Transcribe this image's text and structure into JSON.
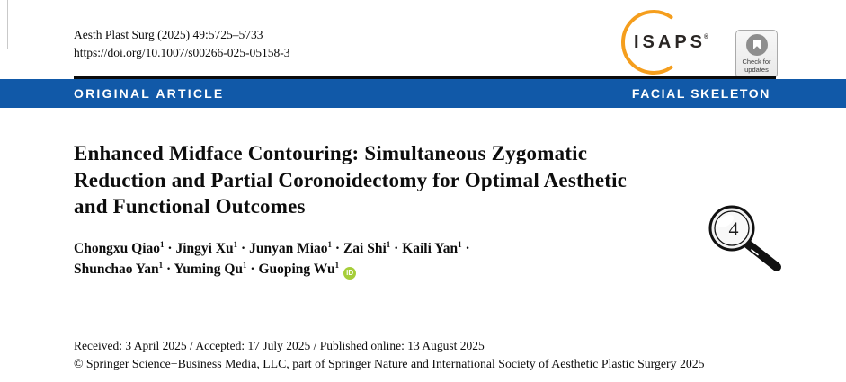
{
  "header": {
    "journal_ref": "Aesth Plast Surg (2025) 49:5725–5733",
    "doi": "https://doi.org/10.1007/s00266-025-05158-3"
  },
  "logo": {
    "text": "ISAPS",
    "registered": "®"
  },
  "update_badge": {
    "line1": "Check for",
    "line2": "updates"
  },
  "banner": {
    "left": "ORIGINAL ARTICLE",
    "right": "FACIAL SKELETON"
  },
  "article": {
    "title_lines": [
      "Enhanced Midface Contouring: Simultaneous Zygomatic",
      "Reduction and Partial Coronoidectomy for Optimal Aesthetic",
      "and Functional Outcomes"
    ],
    "dates_line": "Received: 3 April 2025 / Accepted: 17 July 2025 / Published online: 13 August 2025",
    "copyright": "© Springer Science+Business Media, LLC, part of Springer Nature and International Society of Aesthetic Plastic Surgery 2025"
  },
  "authors": {
    "separator": "·",
    "orcid_label": "iD",
    "lines": [
      [
        {
          "name": "Chongxu Qiao",
          "sup": "1"
        },
        {
          "name": "Jingyi Xu",
          "sup": "1"
        },
        {
          "name": "Junyan Miao",
          "sup": "1"
        },
        {
          "name": "Zai Shi",
          "sup": "1"
        },
        {
          "name": "Kaili Yan",
          "sup": "1"
        }
      ],
      [
        {
          "name": "Shunchao Yan",
          "sup": "1"
        },
        {
          "name": "Yuming Qu",
          "sup": "1"
        },
        {
          "name": "Guoping Wu",
          "sup": "1"
        }
      ]
    ]
  },
  "annotation": {
    "magnifier_number": "4"
  },
  "colors": {
    "banner_blue": "#1159A8",
    "isaps_orange": "#F59E1D",
    "orcid_green": "#A6CE39"
  }
}
